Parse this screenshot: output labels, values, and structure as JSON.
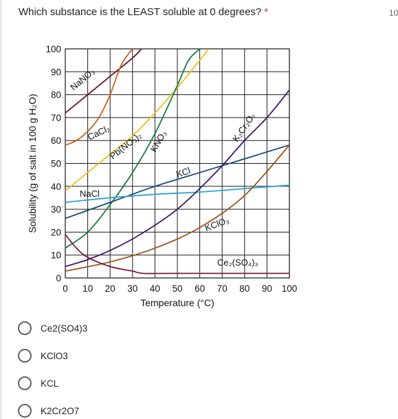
{
  "question": {
    "text": "Which substance is the LEAST soluble at 0 degrees?",
    "required_mark": "*",
    "points": "10"
  },
  "chart_data": {
    "type": "line",
    "xlabel": "Temperature (°C)",
    "ylabel": "Solubility (g of salt in 100 g H₂O)",
    "xlim": [
      0,
      100
    ],
    "ylim": [
      0,
      100
    ],
    "x_ticks": [
      0,
      10,
      20,
      30,
      40,
      50,
      60,
      70,
      80,
      90,
      100
    ],
    "y_ticks": [
      0,
      10,
      20,
      30,
      40,
      50,
      60,
      70,
      80,
      90,
      100
    ],
    "grid": true,
    "series": [
      {
        "name": "NaNO3",
        "label_text": "NaNO₃",
        "color": "#6b0f2e",
        "x": [
          0,
          10,
          20,
          30,
          34
        ],
        "y": [
          72,
          80,
          88,
          96,
          100
        ]
      },
      {
        "name": "CaCl2",
        "label_text": "CaCl₂",
        "color": "#c8641e",
        "x": [
          0,
          5,
          10,
          15,
          20,
          25,
          30
        ],
        "y": [
          58,
          60,
          64,
          70,
          80,
          93,
          100
        ]
      },
      {
        "name": "Pb(NO3)2",
        "label_text": "Pb(NO₃)₂",
        "color": "#e8c020",
        "x": [
          0,
          10,
          20,
          30,
          40,
          50,
          60,
          64
        ],
        "y": [
          38,
          46,
          54,
          62,
          72,
          83,
          95,
          100
        ]
      },
      {
        "name": "KNO3",
        "label_text": "KNO₃",
        "color": "#1a7a3a",
        "x": [
          0,
          10,
          20,
          30,
          40,
          50,
          55,
          60
        ],
        "y": [
          13,
          20,
          32,
          46,
          63,
          84,
          95,
          100
        ]
      },
      {
        "name": "KCl",
        "label_text": "KCl",
        "color": "#154a7a",
        "x": [
          0,
          20,
          40,
          60,
          80,
          100
        ],
        "y": [
          26,
          33,
          40,
          46,
          52,
          58
        ]
      },
      {
        "name": "NaCl",
        "label_text": "NaCl",
        "color": "#2aa4d4",
        "x": [
          0,
          20,
          40,
          60,
          80,
          100
        ],
        "y": [
          33,
          35,
          36.5,
          37.5,
          39,
          40.5
        ]
      },
      {
        "name": "K2Cr2O7",
        "label_text": "K₂Cr₂O₇",
        "color": "#3a1a6a",
        "x": [
          0,
          10,
          20,
          30,
          40,
          50,
          60,
          70,
          80,
          90,
          100
        ],
        "y": [
          5,
          8,
          12,
          17,
          23,
          30,
          39,
          49,
          60,
          70,
          82
        ]
      },
      {
        "name": "KClO3",
        "label_text": "KClO₃",
        "color": "#a0521a",
        "x": [
          0,
          20,
          40,
          60,
          80,
          100
        ],
        "y": [
          3,
          7,
          13,
          22,
          36,
          58
        ]
      },
      {
        "name": "Ce2(SO4)3",
        "label_text": "Ce₂(SO₄)₃",
        "color": "#7a1a3a",
        "x": [
          0,
          5,
          10,
          20,
          30,
          35,
          50,
          100
        ],
        "y": [
          19,
          13,
          9,
          5,
          3,
          2,
          2,
          2
        ]
      }
    ]
  },
  "options": [
    {
      "label": "Ce2(SO4)3"
    },
    {
      "label": "KClO3"
    },
    {
      "label": "KCL"
    },
    {
      "label": "K2Cr2O7"
    }
  ]
}
